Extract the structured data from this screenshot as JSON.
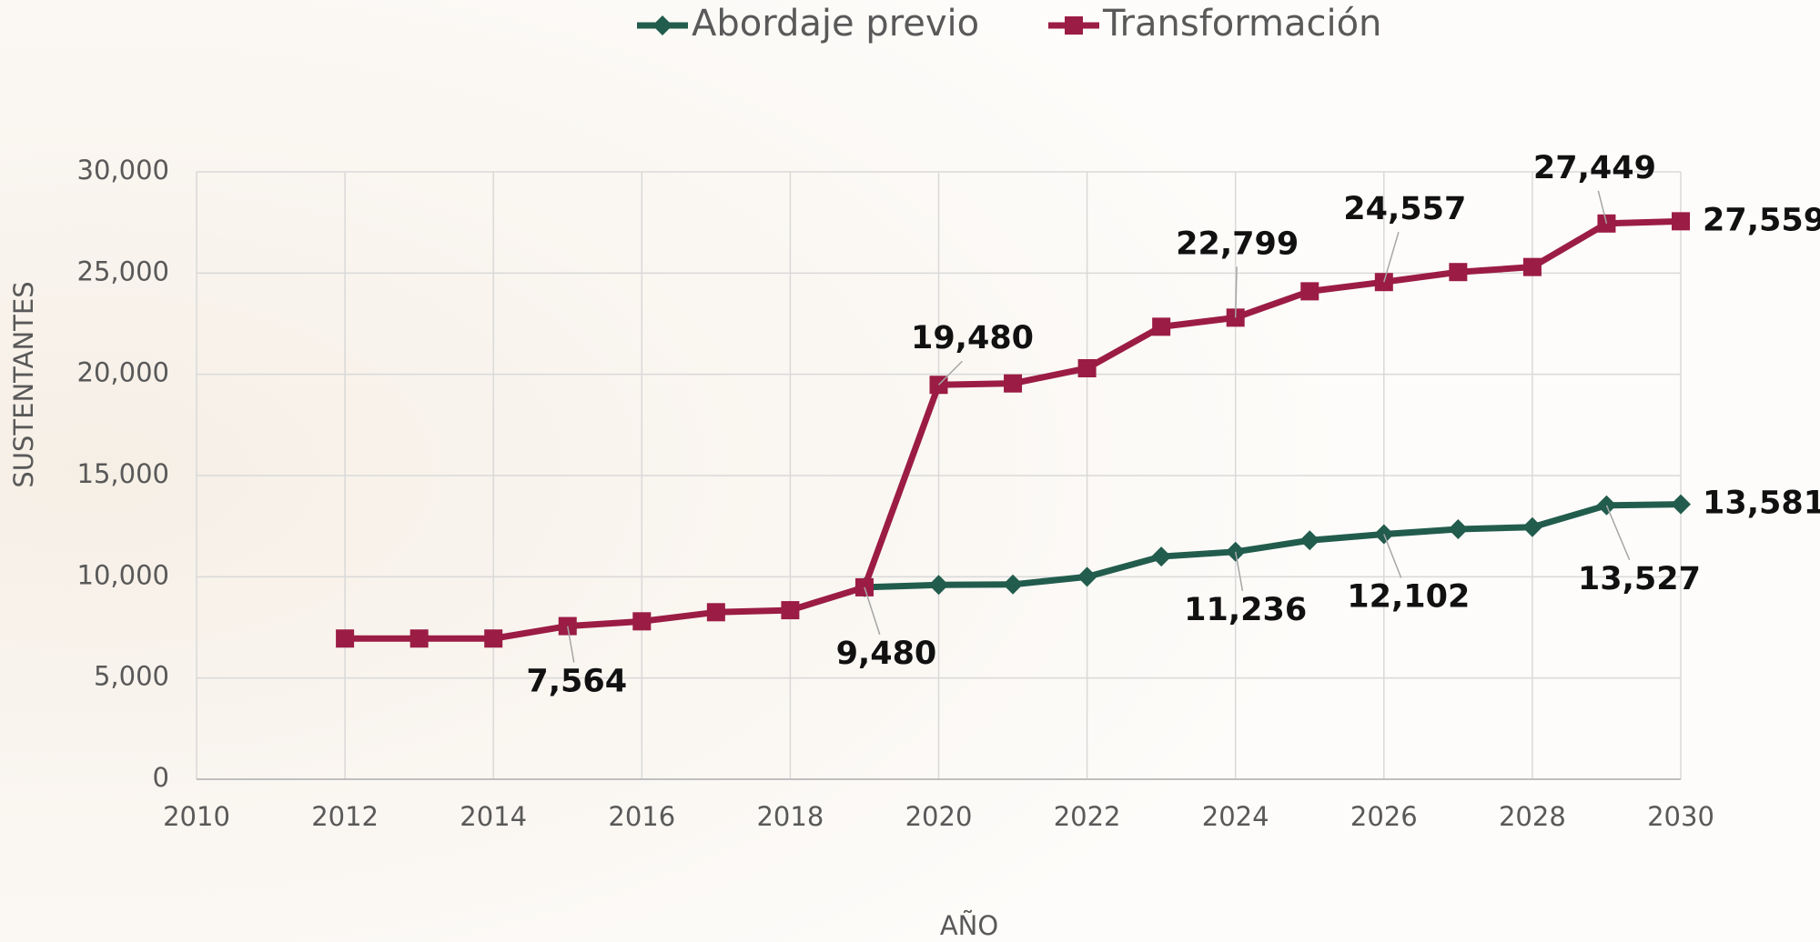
{
  "chart_data": {
    "type": "line",
    "x_label": "AÑO",
    "y_label": "SUSTENTANTES",
    "x": [
      2012,
      2013,
      2014,
      2015,
      2016,
      2017,
      2018,
      2019,
      2020,
      2021,
      2022,
      2023,
      2024,
      2025,
      2026,
      2027,
      2028,
      2029,
      2030
    ],
    "series": [
      {
        "name": "Abordaje previo",
        "color": "#225c4d",
        "marker": "diamond",
        "values": [
          null,
          null,
          null,
          null,
          null,
          null,
          null,
          9480,
          9600,
          9620,
          10000,
          11000,
          11236,
          11800,
          12102,
          12350,
          12450,
          13527,
          13581
        ],
        "value_labels": [
          null,
          null,
          null,
          null,
          null,
          null,
          null,
          null,
          null,
          null,
          null,
          null,
          "11,236",
          null,
          "12,102",
          null,
          null,
          "13,527",
          "13,581"
        ]
      },
      {
        "name": "Transformación",
        "color": "#9b1c45",
        "marker": "square",
        "values": [
          6950,
          6950,
          6950,
          7564,
          7800,
          8250,
          8350,
          9480,
          19480,
          19550,
          20300,
          22350,
          22799,
          24100,
          24557,
          25050,
          25300,
          27449,
          27559
        ],
        "value_labels": [
          null,
          null,
          null,
          "7,564",
          null,
          null,
          null,
          "9,480",
          "19,480",
          null,
          null,
          null,
          "22,799",
          null,
          "24,557",
          null,
          null,
          "27,449",
          "27,559"
        ]
      }
    ],
    "xlim": [
      2010,
      2030
    ],
    "xticks": [
      2010,
      2012,
      2014,
      2016,
      2018,
      2020,
      2022,
      2024,
      2026,
      2028,
      2030
    ],
    "ylim": [
      0,
      30000
    ],
    "yticks": [
      0,
      {
        "value": 5000,
        "label": "5,000"
      },
      {
        "value": 10000,
        "label": "10,000"
      },
      {
        "value": 15000,
        "label": "15,000"
      },
      {
        "value": 20000,
        "label": "20,000"
      },
      {
        "value": 25000,
        "label": "25,000"
      },
      {
        "value": 30000,
        "label": "30,000"
      }
    ],
    "grid": true,
    "legend": "top"
  }
}
